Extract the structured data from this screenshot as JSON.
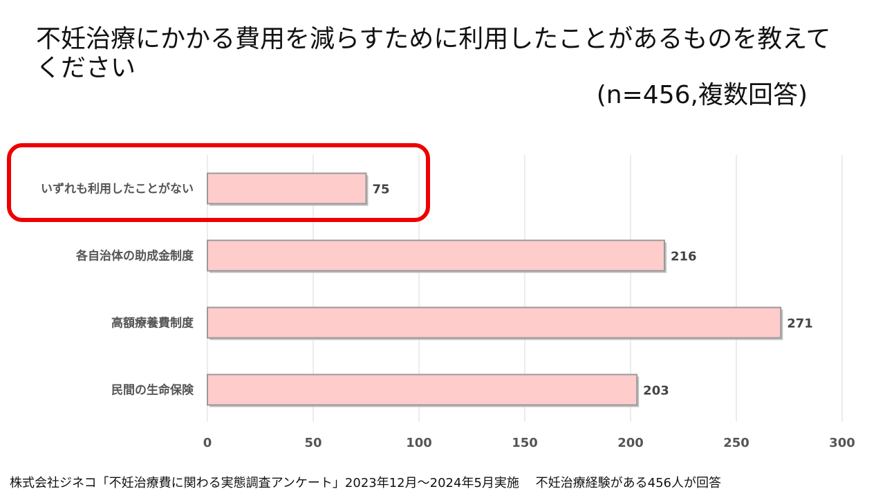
{
  "title": "不妊治療にかかる費用を減らすために利用したことがあるものを教えてください",
  "subtitle": "(n=456,複数回答)",
  "footer": "株式会社ジネコ「不妊治療費に関わる実態調査アンケート」2023年12月～2024年5月実施　 不妊治療経験がある456人が回答",
  "colors": {
    "bar_fill": "#ffcccc",
    "bar_border": "#999999",
    "highlight": "#ee0000",
    "grid": "#d9d9d9"
  },
  "chart_data": {
    "type": "bar",
    "orientation": "horizontal",
    "categories": [
      "いずれも利用したことがない",
      "各自治体の助成金制度",
      "高額療養費制度",
      "民間の生命保険"
    ],
    "values": [
      75,
      216,
      271,
      203
    ],
    "data_labels": [
      "75",
      "216",
      "271",
      "203"
    ],
    "xlim": [
      0,
      300
    ],
    "x_ticks": [
      0,
      50,
      100,
      150,
      200,
      250,
      300
    ],
    "grid": true,
    "highlighted_category": "いずれも利用したことがない"
  }
}
